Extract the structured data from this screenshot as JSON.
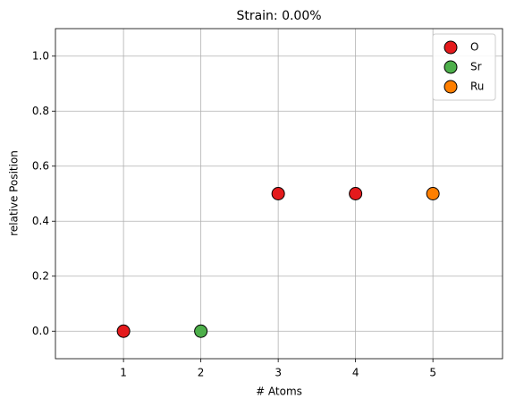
{
  "chart_data": {
    "type": "scatter",
    "title": "Strain: 0.00%",
    "x_label": "# Atoms",
    "y_label": "relative Position",
    "series": [
      {
        "name": "O",
        "color": "#e41a1c",
        "x": [
          1,
          3,
          4
        ],
        "values": [
          0,
          0.5,
          0.5
        ]
      },
      {
        "name": "Sr",
        "color": "#4daf4a",
        "x": [
          2
        ],
        "values": [
          0
        ]
      },
      {
        "name": "Ru",
        "color": "#ff7f00",
        "x": [
          5
        ],
        "values": [
          0.5
        ]
      }
    ],
    "xlim": [
      0.12,
      5.9
    ],
    "xticks": [
      1,
      2,
      3,
      4,
      5
    ],
    "ylim": [
      -0.1,
      1.1
    ],
    "yticks": [
      {
        "value": 0,
        "label": "0.0"
      },
      {
        "value": 0.2,
        "label": "0.2"
      },
      {
        "value": 0.4,
        "label": "0.4"
      },
      {
        "value": 0.6,
        "label": "0.6"
      },
      {
        "value": 0.8,
        "label": "0.8"
      },
      {
        "value": 1.0,
        "label": "1.0"
      }
    ],
    "grid": true,
    "legend": "upper right"
  }
}
